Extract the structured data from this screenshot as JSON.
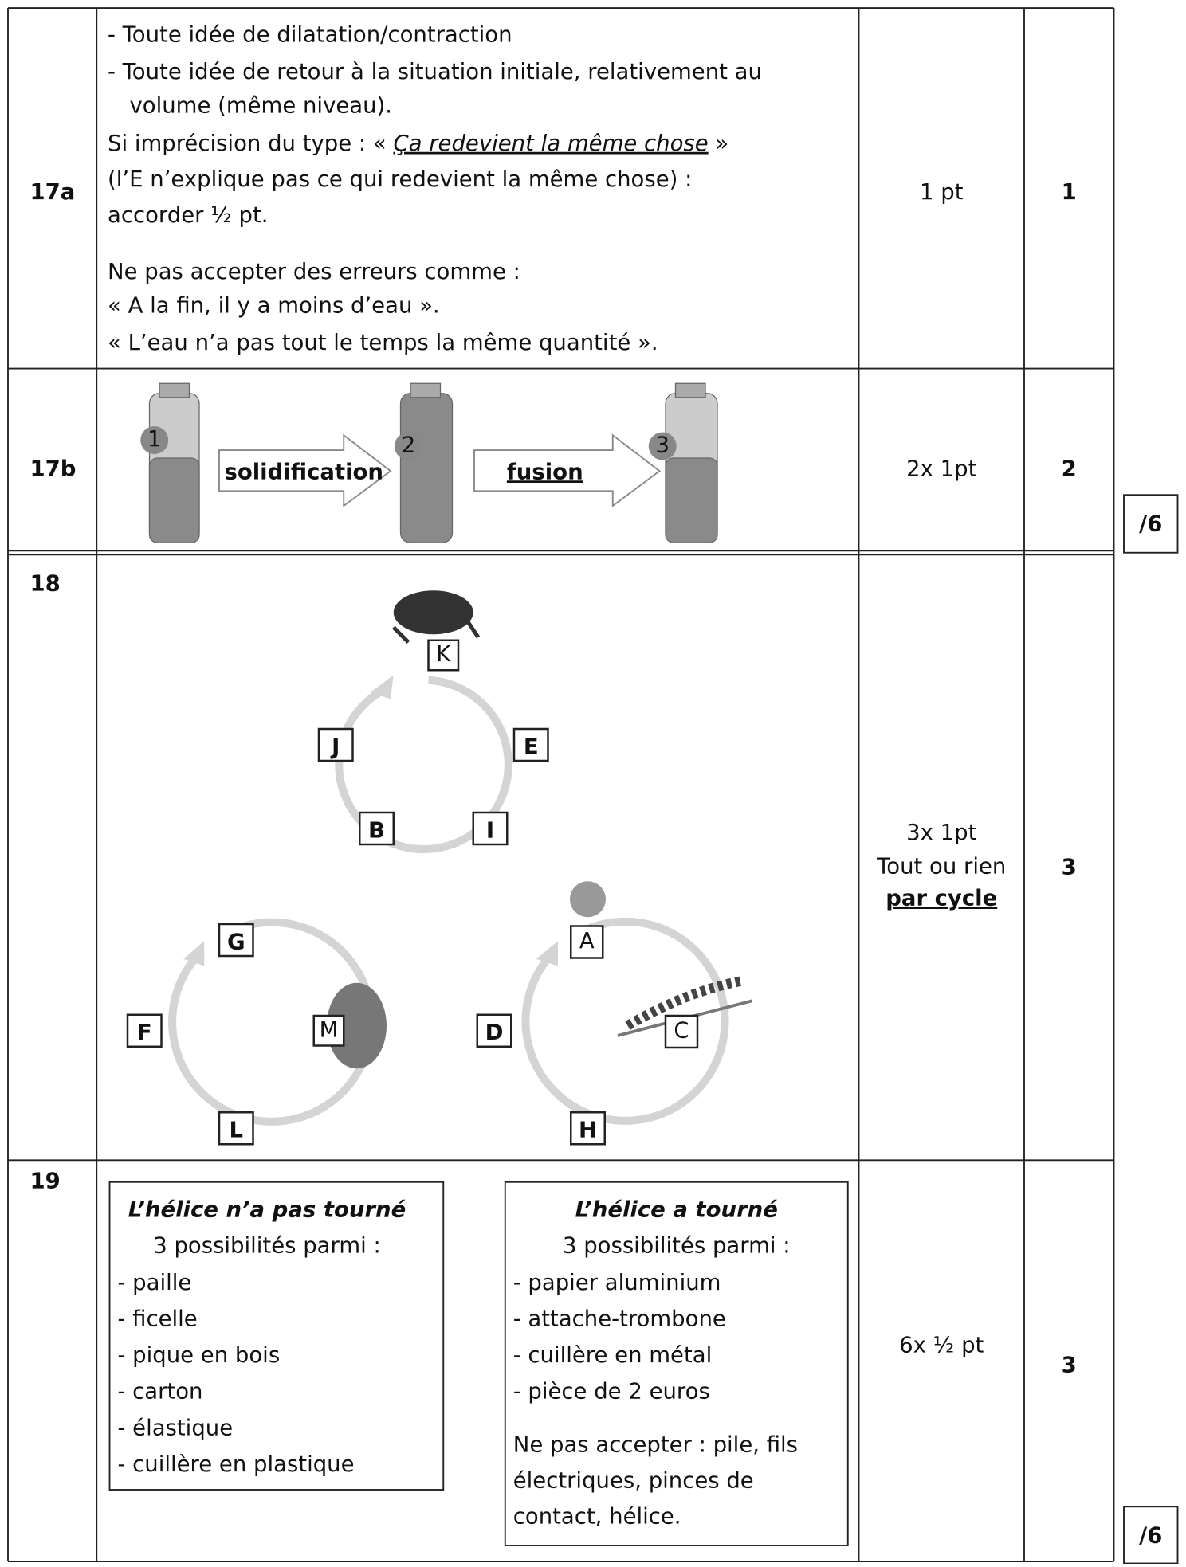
{
  "rows": [
    {
      "id": "17a",
      "lines": [
        "- Toute idée de dilatation/contraction",
        "- Toute idée de retour à la situation initiale, relativement au",
        "volume (même niveau)."
      ],
      "imprecision": [
        "Si imprécision du type : « ",
        "Ça redevient la même chose",
        " »"
      ],
      "lines2": [
        "(l’E n’explique pas ce qui redevient la même chose) :",
        "accorder ½ pt."
      ],
      "reject": [
        "Ne pas accepter des erreurs comme :",
        "« A la fin, il y a moins d’eau ».",
        "« L’eau n’a pas tout le temps la même quantité »."
      ],
      "points": "1 pt",
      "score": "1"
    },
    {
      "id": "17b",
      "bottles": [
        "1",
        "2",
        "3"
      ],
      "arrows": [
        "solidification",
        "fusion"
      ],
      "points": "2x 1pt",
      "score": "2"
    },
    {
      "id": "18",
      "cycles": [
        [
          "K",
          "J",
          "E",
          "B",
          "I"
        ],
        [
          "G",
          "F",
          "M",
          "L"
        ],
        [
          "A",
          "D",
          "C",
          "H"
        ]
      ],
      "points": [
        "3x 1pt",
        "Tout ou rien",
        "par cycle"
      ],
      "score": "3"
    },
    {
      "id": "19",
      "boxes": [
        {
          "title": "L’hélice n’a pas tourné",
          "subtitle": "3 possibilités parmi :",
          "items": [
            "- paille",
            "- ficelle",
            "- pique en bois",
            "- carton",
            "- élastique",
            "- cuillère en plastique"
          ]
        },
        {
          "title": "L’hélice a tourné",
          "subtitle": "3 possibilités parmi :",
          "items": [
            "- papier aluminium",
            "- attache-trombone",
            "- cuillère en métal",
            "- pièce de 2 euros"
          ],
          "reject": [
            "Ne pas accepter : pile, fils",
            "électriques, pinces de",
            "contact, hélice."
          ]
        }
      ],
      "points": "6x ½ pt",
      "score": "3"
    }
  ],
  "subtotals": [
    "/6",
    "/6"
  ]
}
